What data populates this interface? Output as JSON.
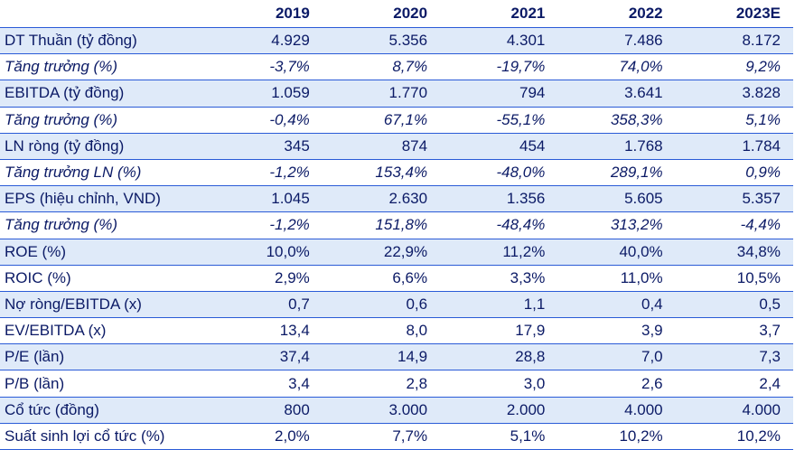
{
  "header": {
    "label": "",
    "years": [
      "2019",
      "2020",
      "2021",
      "2022",
      "2023E"
    ]
  },
  "rows": [
    {
      "label": "DT Thuần (tỷ đồng)",
      "values": [
        "4.929",
        "5.356",
        "4.301",
        "7.486",
        "8.172"
      ]
    },
    {
      "label": "Tăng trưởng (%)",
      "values": [
        "-3,7%",
        "8,7%",
        "-19,7%",
        "74,0%",
        "9,2%"
      ]
    },
    {
      "label": "EBITDA (tỷ đồng)",
      "values": [
        "1.059",
        "1.770",
        "794",
        "3.641",
        "3.828"
      ]
    },
    {
      "label": "Tăng trưởng (%)",
      "values": [
        "-0,4%",
        "67,1%",
        "-55,1%",
        "358,3%",
        "5,1%"
      ]
    },
    {
      "label": "LN ròng (tỷ đồng)",
      "values": [
        "345",
        "874",
        "454",
        "1.768",
        "1.784"
      ]
    },
    {
      "label": "Tăng trưởng LN (%)",
      "values": [
        "-1,2%",
        "153,4%",
        "-48,0%",
        "289,1%",
        "0,9%"
      ]
    },
    {
      "label": "EPS (hiệu chỉnh, VND)",
      "values": [
        "1.045",
        "2.630",
        "1.356",
        "5.605",
        "5.357"
      ]
    },
    {
      "label": "Tăng trưởng (%)",
      "values": [
        "-1,2%",
        "151,8%",
        "-48,4%",
        "313,2%",
        "-4,4%"
      ]
    },
    {
      "label": "ROE (%)",
      "values": [
        "10,0%",
        "22,9%",
        "11,2%",
        "40,0%",
        "34,8%"
      ]
    },
    {
      "label": "ROIC (%)",
      "values": [
        "2,9%",
        "6,6%",
        "3,3%",
        "11,0%",
        "10,5%"
      ]
    },
    {
      "label": "Nợ ròng/EBITDA (x)",
      "values": [
        "0,7",
        "0,6",
        "1,1",
        "0,4",
        "0,5"
      ]
    },
    {
      "label": "EV/EBITDA (x)",
      "values": [
        "13,4",
        "8,0",
        "17,9",
        "3,9",
        "3,7"
      ]
    },
    {
      "label": "P/E (lần)",
      "values": [
        "37,4",
        "14,9",
        "28,8",
        "7,0",
        "7,3"
      ]
    },
    {
      "label": "P/B (lần)",
      "values": [
        "3,4",
        "2,8",
        "3,0",
        "2,6",
        "2,4"
      ]
    },
    {
      "label": "Cổ tức (đồng)",
      "values": [
        "800",
        "3.000",
        "2.000",
        "4.000",
        "4.000"
      ]
    },
    {
      "label": "Suất sinh lợi cổ tức (%)",
      "values": [
        "2,0%",
        "7,7%",
        "5,1%",
        "10,2%",
        "10,2%"
      ]
    }
  ],
  "colors": {
    "text": "#0b1a66",
    "row_shade": "#dfeaf9",
    "rule": "#2a5bd7"
  }
}
